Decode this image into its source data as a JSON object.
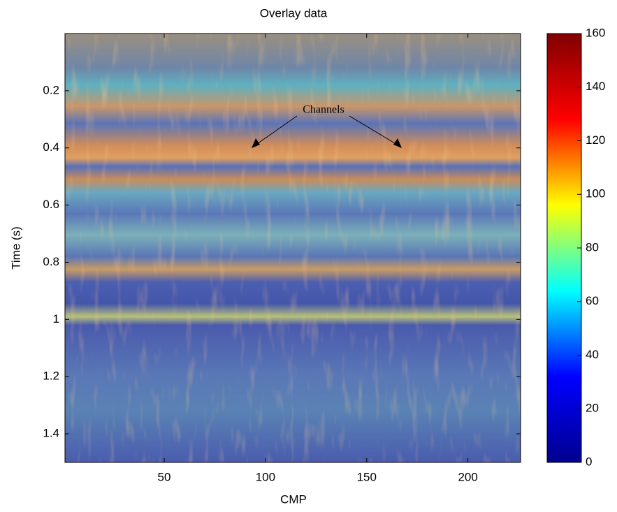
{
  "chart_data": {
    "type": "image",
    "title": "Overlay data",
    "xlabel": "CMP",
    "ylabel": "Time (s)",
    "xlim": [
      1,
      226
    ],
    "xticks": [
      50,
      100,
      150,
      200
    ],
    "ylim": [
      0,
      1.5
    ],
    "y_reversed": true,
    "yticks": [
      0.2,
      0.4,
      0.6,
      0.8,
      1,
      1.2,
      1.4
    ],
    "colorbar": {
      "lim": [
        0,
        160
      ],
      "ticks": [
        0,
        20,
        40,
        60,
        80,
        100,
        120,
        140,
        160
      ],
      "colormap": [
        "#00008f",
        "#0000ff",
        "#00ffff",
        "#ffff00",
        "#ff0000",
        "#800000"
      ]
    },
    "annotation": "Channels"
  }
}
